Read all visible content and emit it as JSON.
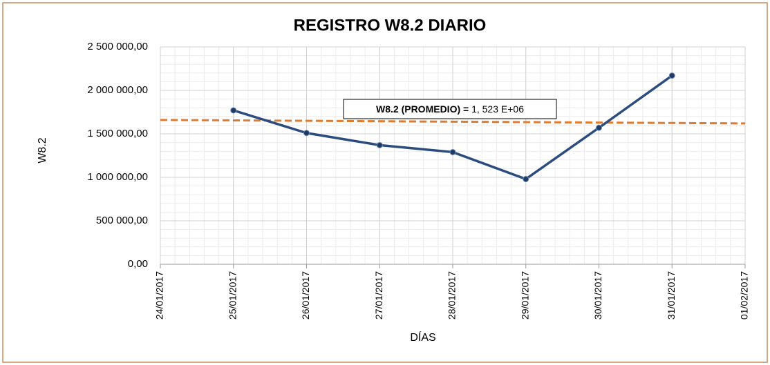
{
  "chart_data": {
    "type": "line",
    "title": "REGISTRO W8.2 DIARIO",
    "x_label": "DÍAS",
    "y_label": "W8.2",
    "categories": [
      "24/01/2017",
      "25/01/2017",
      "26/01/2017",
      "27/01/2017",
      "28/01/2017",
      "29/01/2017",
      "30/01/2017",
      "31/01/2017",
      "01/02/2017"
    ],
    "series": [
      {
        "color": "#2b4c7e",
        "values": [
          null,
          1770000,
          1510000,
          1370000,
          1290000,
          980000,
          1570000,
          2170000,
          null
        ]
      }
    ],
    "trend_line": {
      "start": 1660000,
      "end": 1620000,
      "color": "#e07b2e"
    },
    "annotation": {
      "label": "W8.2 (PROMEDIO) =",
      "value": "1, 523 E+06"
    },
    "ylim": [
      0,
      2500000
    ],
    "yticks": [
      {
        "value": 0,
        "label": "0,00"
      },
      {
        "value": 500000,
        "label": "500 000,00"
      },
      {
        "value": 1000000,
        "label": "1 000 000,00"
      },
      {
        "value": 1500000,
        "label": "1 500 000,00"
      },
      {
        "value": 2000000,
        "label": "2 000 000,00"
      },
      {
        "value": 2500000,
        "label": "2 500 000,00"
      }
    ],
    "grid": true
  }
}
